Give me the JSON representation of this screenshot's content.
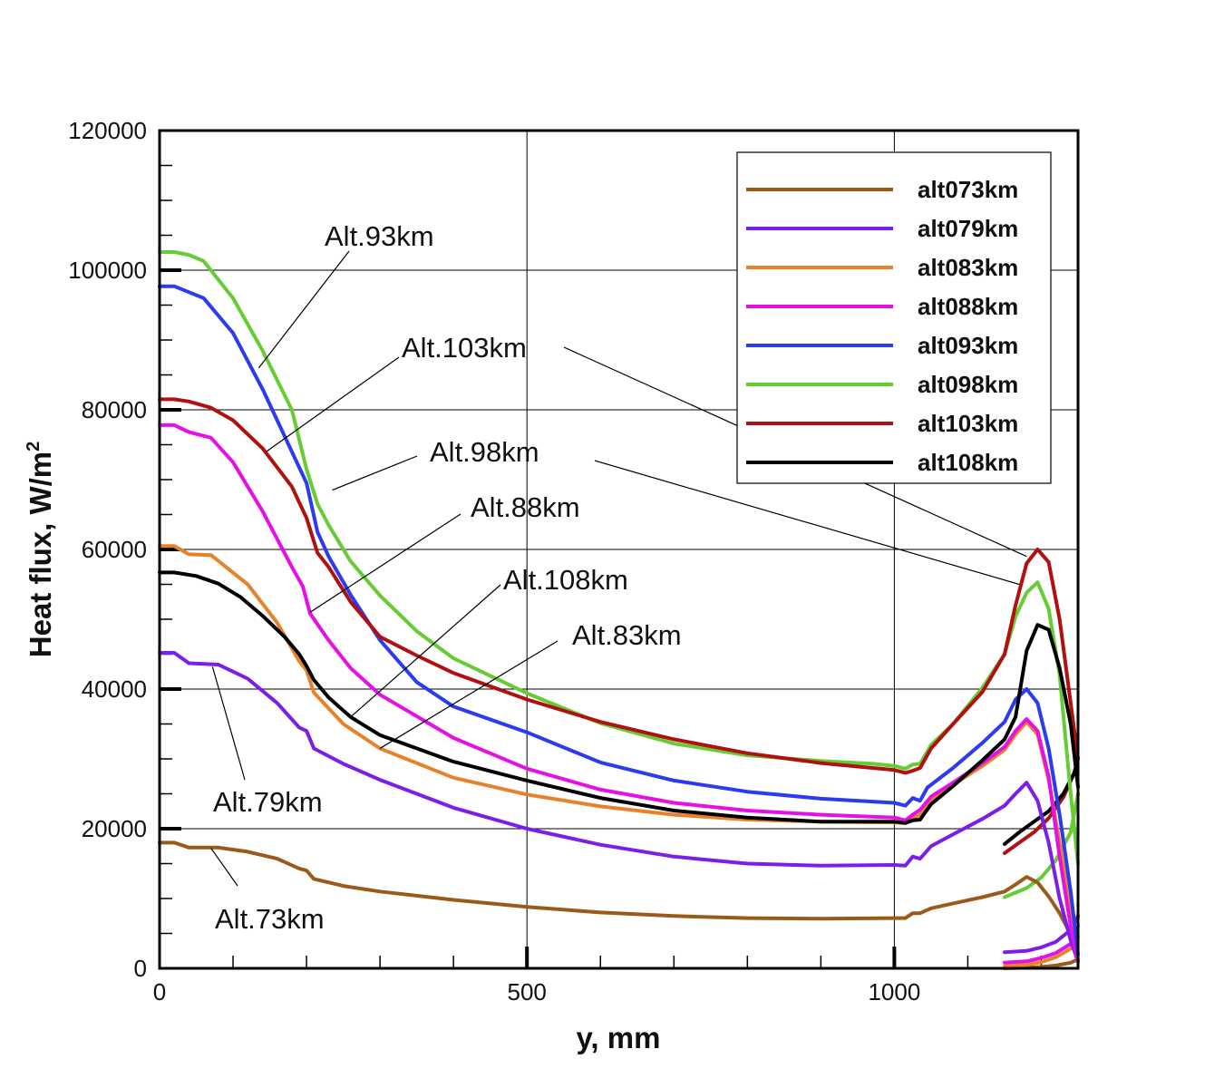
{
  "chart_data": {
    "type": "line",
    "xlabel": "y, mm",
    "ylabel": "Heat flux, W/m",
    "ylabel_sup": "2",
    "xlim": [
      0,
      1250
    ],
    "ylim": [
      0,
      120000
    ],
    "x_ticks": [
      0,
      500,
      1000
    ],
    "y_ticks": [
      0,
      20000,
      40000,
      60000,
      80000,
      100000,
      120000
    ],
    "grid": true,
    "legend_position": "top-right",
    "series": [
      {
        "name": "alt073km",
        "color": "#9b5a1a",
        "label": "Alt.73km",
        "x": [
          0,
          20,
          40,
          80,
          120,
          160,
          190,
          200,
          210,
          250,
          300,
          400,
          500,
          600,
          700,
          800,
          900,
          1000,
          1015,
          1025,
          1035,
          1050,
          1080,
          1120,
          1150,
          1165,
          1180,
          1195,
          1210,
          1225,
          1235,
          1245,
          1250
        ],
        "y": [
          18000,
          18000,
          17300,
          17300,
          16700,
          15700,
          14300,
          14000,
          12800,
          11800,
          11000,
          9800,
          8800,
          8000,
          7500,
          7200,
          7100,
          7200,
          7200,
          7900,
          7900,
          8600,
          9300,
          10200,
          11000,
          12000,
          13100,
          12300,
          10300,
          7900,
          5900,
          3200,
          1000
        ]
      },
      {
        "name": "alt079km",
        "color": "#7b1fe8",
        "label": "Alt.79km",
        "x": [
          0,
          20,
          40,
          80,
          120,
          160,
          190,
          200,
          210,
          250,
          300,
          400,
          500,
          600,
          700,
          800,
          900,
          1000,
          1015,
          1025,
          1035,
          1050,
          1080,
          1120,
          1150,
          1165,
          1180,
          1195,
          1210,
          1225,
          1240,
          1250
        ],
        "y": [
          45200,
          45200,
          43700,
          43500,
          41500,
          38000,
          34500,
          34000,
          31500,
          29300,
          27000,
          23000,
          20000,
          17700,
          16000,
          15000,
          14700,
          14800,
          14700,
          16000,
          15700,
          17500,
          19200,
          21400,
          23300,
          25000,
          26600,
          24000,
          18000,
          10000,
          4000,
          1000
        ]
      },
      {
        "name": "alt083km",
        "color": "#e8822a",
        "label": "Alt.83km",
        "x": [
          0,
          20,
          40,
          70,
          120,
          160,
          190,
          200,
          210,
          250,
          300,
          400,
          500,
          600,
          700,
          800,
          900,
          1000,
          1015,
          1025,
          1035,
          1050,
          1080,
          1120,
          1150,
          1165,
          1180,
          1195,
          1210,
          1225,
          1240,
          1250
        ],
        "y": [
          60500,
          60500,
          59300,
          59200,
          55000,
          49500,
          44000,
          42700,
          39500,
          35000,
          31500,
          27300,
          24900,
          23200,
          22000,
          21300,
          21000,
          20900,
          20800,
          21500,
          22000,
          24000,
          26300,
          29000,
          31300,
          33500,
          35300,
          33500,
          27000,
          18000,
          8000,
          1000
        ]
      },
      {
        "name": "alt088km",
        "color": "#e510e5",
        "label": "Alt.88km",
        "x": [
          0,
          20,
          40,
          70,
          100,
          140,
          180,
          195,
          205,
          230,
          260,
          300,
          400,
          500,
          600,
          700,
          800,
          900,
          1000,
          1015,
          1025,
          1035,
          1050,
          1080,
          1120,
          1150,
          1165,
          1180,
          1195,
          1210,
          1225,
          1240,
          1250
        ],
        "y": [
          77800,
          77800,
          76800,
          76000,
          72500,
          65500,
          57500,
          54700,
          50800,
          47000,
          43000,
          39200,
          33000,
          28600,
          25600,
          23700,
          22600,
          22000,
          21600,
          21200,
          22000,
          22700,
          24600,
          26600,
          29400,
          31700,
          34000,
          35700,
          34000,
          27500,
          16000,
          6000,
          1000
        ]
      },
      {
        "name": "alt093km",
        "color": "#2a3bf0",
        "label": "Alt.93km",
        "x": [
          0,
          20,
          60,
          100,
          140,
          180,
          200,
          215,
          230,
          260,
          300,
          350,
          400,
          500,
          600,
          700,
          800,
          900,
          1000,
          1015,
          1025,
          1035,
          1045,
          1080,
          1120,
          1150,
          1165,
          1180,
          1195,
          1210,
          1225,
          1240,
          1250
        ],
        "y": [
          97700,
          97700,
          96000,
          91000,
          83000,
          74000,
          69500,
          62500,
          59000,
          53500,
          47000,
          41000,
          37500,
          33800,
          29500,
          26900,
          25300,
          24300,
          23700,
          23300,
          24400,
          24000,
          25900,
          28700,
          32300,
          35300,
          38500,
          40000,
          38000,
          31500,
          22000,
          11000,
          2000
        ]
      },
      {
        "name": "alt098km",
        "color": "#66cc33",
        "label": "Alt.98km",
        "x": [
          0,
          20,
          40,
          60,
          100,
          140,
          180,
          200,
          215,
          230,
          260,
          300,
          350,
          400,
          500,
          600,
          700,
          800,
          900,
          970,
          1000,
          1015,
          1025,
          1035,
          1050,
          1080,
          1120,
          1150,
          1165,
          1180,
          1195,
          1210,
          1225,
          1240,
          1250
        ],
        "y": [
          102600,
          102600,
          102200,
          101300,
          96000,
          88500,
          80000,
          71500,
          66500,
          63500,
          58300,
          53400,
          48300,
          44400,
          39400,
          35100,
          32200,
          30500,
          29700,
          29300,
          29000,
          28600,
          29200,
          29300,
          32000,
          35000,
          40200,
          45000,
          50400,
          53800,
          55300,
          51500,
          42000,
          25000,
          15000
        ]
      },
      {
        "name": "alt103km",
        "color": "#b01010",
        "label": "Alt.103km",
        "x": [
          0,
          20,
          40,
          70,
          100,
          140,
          180,
          200,
          215,
          230,
          260,
          300,
          350,
          400,
          500,
          600,
          700,
          800,
          900,
          1000,
          1015,
          1025,
          1035,
          1050,
          1080,
          1120,
          1150,
          1165,
          1180,
          1195,
          1210,
          1225,
          1240,
          1250
        ],
        "y": [
          81500,
          81500,
          81200,
          80300,
          78500,
          74500,
          69000,
          64500,
          59500,
          57500,
          52500,
          47500,
          44800,
          42300,
          38500,
          35300,
          32800,
          30800,
          29400,
          28400,
          28000,
          28300,
          28700,
          31500,
          35000,
          39600,
          45000,
          52000,
          58000,
          60000,
          58200,
          50000,
          38000,
          30000
        ]
      },
      {
        "name": "alt108km",
        "color": "#000000",
        "label": "Alt.108km",
        "x": [
          0,
          20,
          50,
          80,
          110,
          140,
          170,
          190,
          200,
          210,
          230,
          260,
          300,
          400,
          500,
          600,
          700,
          800,
          900,
          1000,
          1015,
          1025,
          1035,
          1050,
          1080,
          1120,
          1150,
          1165,
          1180,
          1195,
          1210,
          1225,
          1240,
          1250
        ],
        "y": [
          56700,
          56700,
          56200,
          55100,
          53200,
          50500,
          47500,
          45000,
          43300,
          41300,
          38800,
          36000,
          33400,
          29600,
          26900,
          24400,
          22600,
          21600,
          21000,
          21000,
          20800,
          21200,
          21300,
          23500,
          26100,
          29800,
          32800,
          36000,
          45500,
          49200,
          48500,
          43000,
          35000,
          26000
        ]
      }
    ],
    "inner_series": [
      {
        "name": "alt073km",
        "color": "#9b5a1a",
        "x": [
          1150,
          1180,
          1200,
          1220,
          1240,
          1250
        ],
        "y": [
          0,
          100,
          200,
          400,
          800,
          1300
        ]
      },
      {
        "name": "alt079km",
        "color": "#7b1fe8",
        "x": [
          1150,
          1180,
          1200,
          1220,
          1240,
          1250
        ],
        "y": [
          2300,
          2500,
          3000,
          3800,
          5500,
          7500
        ]
      },
      {
        "name": "alt083km",
        "color": "#e8822a",
        "x": [
          1150,
          1180,
          1200,
          1220,
          1240,
          1250
        ],
        "y": [
          300,
          500,
          900,
          1600,
          2800,
          4500
        ]
      },
      {
        "name": "alt088km",
        "color": "#e510e5",
        "x": [
          1150,
          1180,
          1200,
          1220,
          1240,
          1250
        ],
        "y": [
          800,
          1000,
          1500,
          2200,
          3500,
          6000
        ]
      },
      {
        "name": "alt098km",
        "color": "#66cc33",
        "x": [
          1150,
          1180,
          1200,
          1220,
          1240,
          1250
        ],
        "y": [
          10200,
          11500,
          13000,
          15500,
          19500,
          25000
        ]
      },
      {
        "name": "alt103km",
        "color": "#b01010",
        "x": [
          1150,
          1170,
          1190,
          1210,
          1230,
          1245,
          1250
        ],
        "y": [
          16500,
          18000,
          19500,
          21500,
          24500,
          28000,
          30000
        ]
      },
      {
        "name": "alt108km",
        "color": "#000000",
        "x": [
          1150,
          1170,
          1190,
          1210,
          1230,
          1245,
          1250
        ],
        "y": [
          17800,
          19500,
          21000,
          22500,
          25000,
          28000,
          30000
        ]
      }
    ],
    "annotations": [
      {
        "text": "Alt.93km",
        "target_x": 135,
        "target_y": 86000,
        "series": "alt093km"
      },
      {
        "text": "Alt.103km",
        "target_x": 145,
        "target_y": 74000,
        "series": "alt103km"
      },
      {
        "text": "Alt.98km",
        "target_x": 235,
        "target_y": 68500,
        "series": "alt098km"
      },
      {
        "text": "Alt.88km",
        "target_x": 205,
        "target_y": 51000,
        "series": "alt088km"
      },
      {
        "text": "Alt.108km",
        "target_x": 260,
        "target_y": 36000,
        "series": "alt108km"
      },
      {
        "text": "Alt.83km",
        "target_x": 300,
        "target_y": 31500,
        "series": "alt083km"
      },
      {
        "text": "Alt.79km",
        "target_x": 72,
        "target_y": 43200,
        "series": "alt079km"
      },
      {
        "text": "Alt.73km",
        "target_x": 70,
        "target_y": 17200,
        "series": "alt073km"
      },
      {
        "text": "",
        "target_x": 1180,
        "target_y": 59000,
        "series": "alt103km"
      },
      {
        "text": "",
        "target_x": 1170,
        "target_y": 55000,
        "series": "alt098km"
      }
    ]
  }
}
